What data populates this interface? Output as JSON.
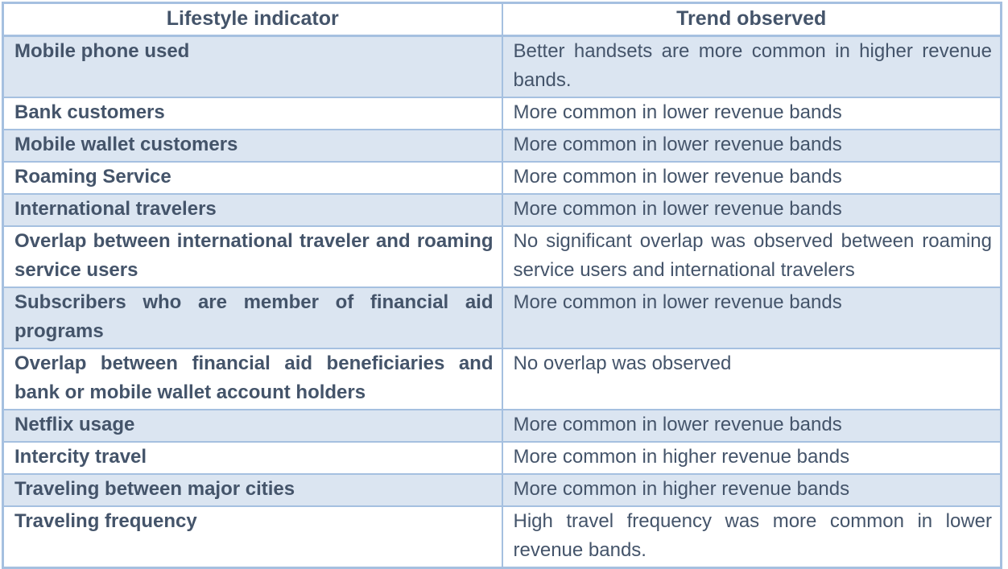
{
  "colors": {
    "border": "#A5C0E0",
    "row_shade": "#DBE5F1",
    "text": "#44546A",
    "background": "#FFFFFF"
  },
  "table": {
    "headers": [
      {
        "label": "Lifestyle indicator"
      },
      {
        "label": "Trend observed"
      }
    ],
    "rows": [
      {
        "indicator": "Mobile phone used",
        "trend": "Better handsets are more common in higher revenue bands."
      },
      {
        "indicator": "Bank customers",
        "trend": "More common in lower revenue bands"
      },
      {
        "indicator": "Mobile wallet customers",
        "trend": "More common in lower revenue bands"
      },
      {
        "indicator": "Roaming Service",
        "trend": "More common in lower revenue bands"
      },
      {
        "indicator": "International travelers",
        "trend": "More common in lower revenue bands"
      },
      {
        "indicator": "Overlap between international traveler and roaming service users",
        "trend": "No significant overlap was observed between roaming service users and international travelers"
      },
      {
        "indicator": "Subscribers who are member of financial aid programs",
        "trend": "More common in lower revenue bands"
      },
      {
        "indicator": "Overlap between financial aid beneficiaries and bank or mobile wallet account holders",
        "trend": "No overlap was observed"
      },
      {
        "indicator": "Netflix usage",
        "trend": "More common in lower revenue bands"
      },
      {
        "indicator": "Intercity travel",
        "trend": "More common in higher revenue bands"
      },
      {
        "indicator": "Traveling between major cities",
        "trend": "More common in higher revenue bands"
      },
      {
        "indicator": "Traveling frequency",
        "trend": "High travel frequency was more common in lower revenue bands."
      }
    ]
  }
}
